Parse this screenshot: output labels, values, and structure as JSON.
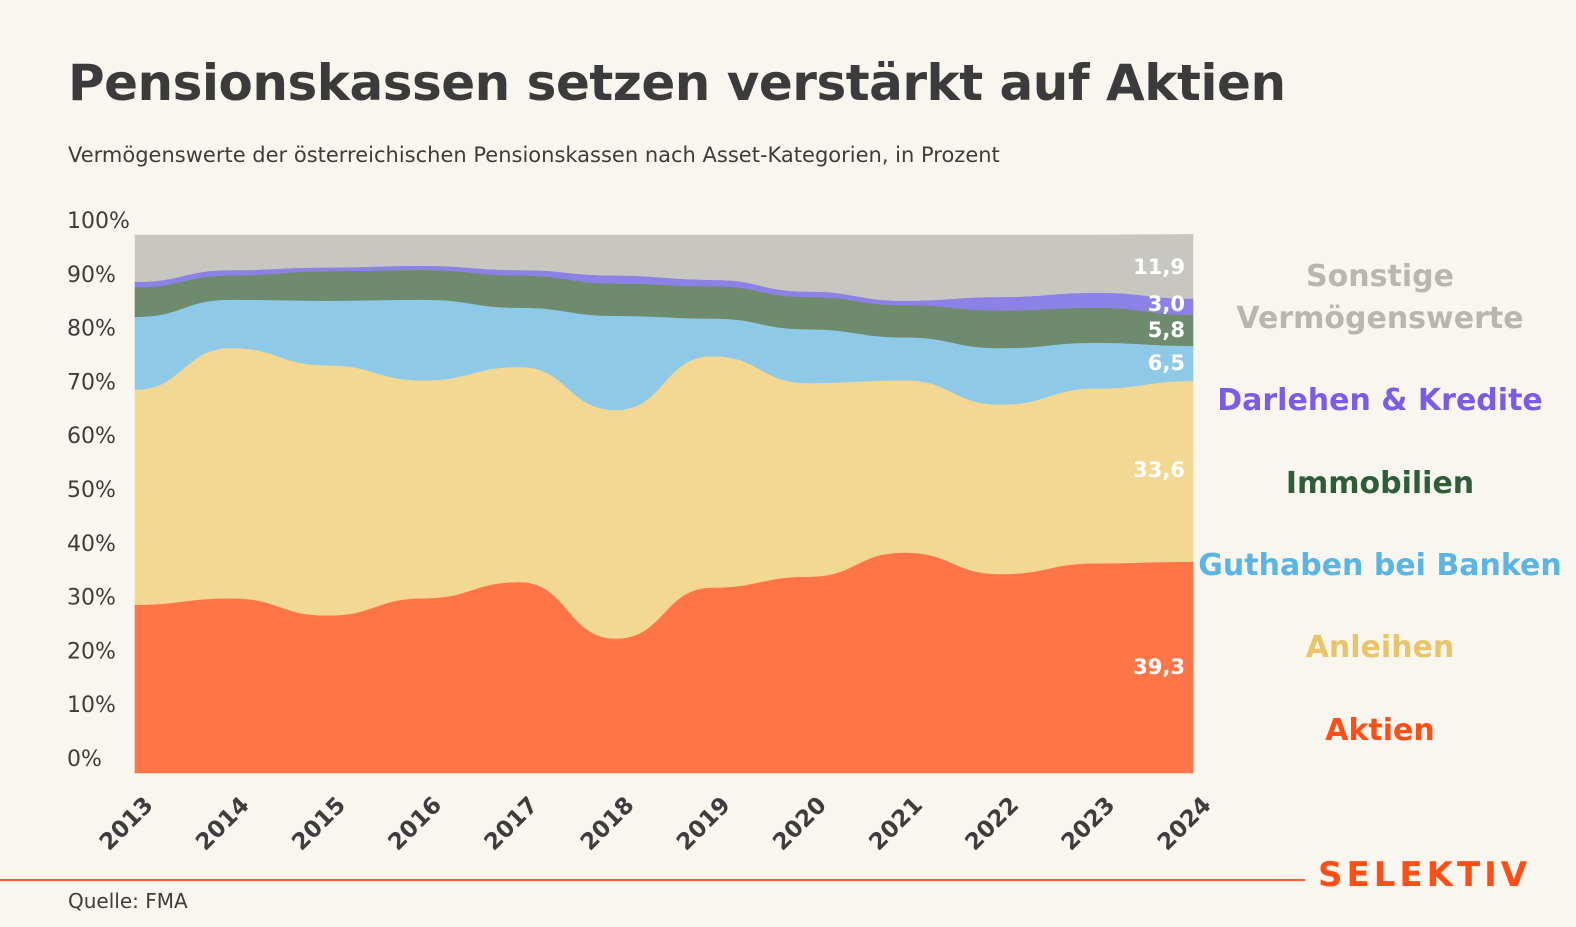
{
  "header": {
    "title": "Pensionskassen setzen verstärkt auf Aktien",
    "subtitle": "Vermögenswerte der österreichischen Pensionskassen nach Asset-Kategorien, in Prozent"
  },
  "footer": {
    "source": "Quelle: FMA",
    "brand": "SELEKTIV"
  },
  "legend": [
    {
      "label": "Sonstige\nVermögenswerte",
      "color": "#b9b6b1"
    },
    {
      "label": "Darlehen & Kredite",
      "color": "#7a5ce6"
    },
    {
      "label": "Immobilien",
      "color": "#2e5d3a"
    },
    {
      "label": "Guthaben bei Banken",
      "color": "#5ab4e4"
    },
    {
      "label": "Anleihen",
      "color": "#e9c46a"
    },
    {
      "label": "Aktien",
      "color": "#ff4f17"
    }
  ],
  "chart_data": {
    "type": "area",
    "stacked": true,
    "categories": [
      "2013",
      "2014",
      "2015",
      "2016",
      "2017",
      "2018",
      "2019",
      "2020",
      "2021",
      "2022",
      "2023",
      "2024"
    ],
    "y_tick_labels": [
      "0%",
      "10%",
      "20%",
      "30%",
      "40%",
      "50%",
      "60%",
      "70%",
      "80%",
      "90%",
      "100%"
    ],
    "ylim": [
      0,
      100
    ],
    "series": [
      {
        "name": "Aktien",
        "color": "#ff7548",
        "values": [
          31.3,
          32.5,
          29.3,
          32.5,
          35.5,
          25.0,
          34.5,
          36.5,
          41.0,
          37.0,
          39.0,
          39.3
        ]
      },
      {
        "name": "Anleihen",
        "color": "#f2d892",
        "values": [
          40.0,
          46.5,
          46.5,
          40.5,
          40.0,
          42.5,
          43.0,
          36.0,
          32.0,
          31.5,
          32.5,
          33.6
        ]
      },
      {
        "name": "Guthaben bei Banken",
        "color": "#8ecae8",
        "values": [
          13.5,
          9.0,
          12.0,
          15.0,
          11.0,
          17.5,
          7.0,
          10.0,
          8.0,
          10.5,
          8.5,
          6.5
        ]
      },
      {
        "name": "Immobilien",
        "color": "#6f8b6d",
        "values": [
          5.5,
          4.5,
          5.5,
          5.5,
          6.0,
          6.0,
          6.0,
          6.0,
          6.0,
          7.0,
          6.5,
          5.8
        ]
      },
      {
        "name": "Darlehen & Kredite",
        "color": "#8c82e6",
        "values": [
          1.0,
          1.0,
          0.7,
          0.8,
          1.0,
          1.5,
          1.2,
          1.0,
          0.8,
          2.5,
          2.8,
          3.0
        ]
      },
      {
        "name": "Sonstige Vermögenswerte",
        "color": "#c8c6c1",
        "values": [
          8.7,
          6.5,
          6.0,
          5.7,
          6.5,
          7.5,
          8.3,
          10.5,
          12.2,
          11.5,
          10.7,
          11.9
        ]
      }
    ],
    "end_labels": [
      "39,3",
      "33,6",
      "6,5",
      "5,8",
      "3,0",
      "11,9"
    ]
  }
}
